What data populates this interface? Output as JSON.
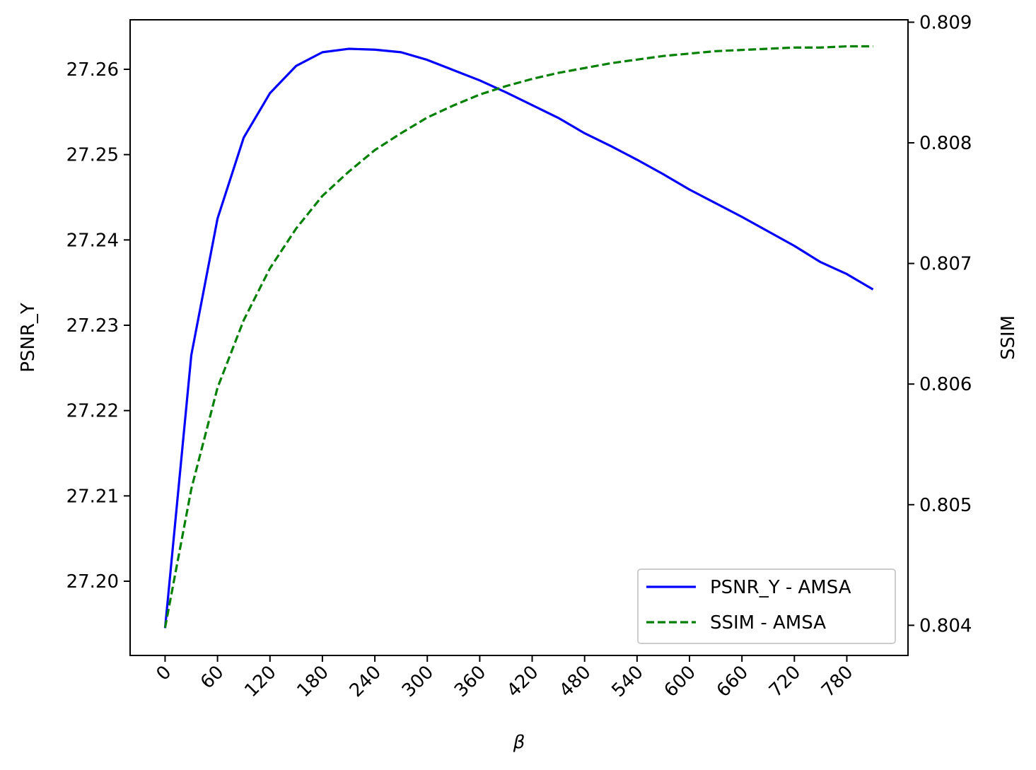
{
  "chart_data": {
    "type": "line",
    "xlabel": "β",
    "ylabel_left": "PSNR_Y",
    "ylabel_right": "SSIM",
    "x_ticks": [
      0,
      60,
      120,
      180,
      240,
      300,
      360,
      420,
      480,
      540,
      600,
      660,
      720,
      780
    ],
    "x_tick_labels": [
      "0",
      "60",
      "120",
      "180",
      "240",
      "300",
      "360",
      "420",
      "480",
      "540",
      "600",
      "660",
      "720",
      "780"
    ],
    "xlim": [
      -40,
      850
    ],
    "left_axis": {
      "ylim": [
        27.1913,
        27.2658
      ],
      "ticks": [
        27.2,
        27.21,
        27.22,
        27.23,
        27.24,
        27.25,
        27.26
      ],
      "tick_labels": [
        "27.20",
        "27.21",
        "27.22",
        "27.23",
        "27.24",
        "27.25",
        "27.26"
      ]
    },
    "right_axis": {
      "ylim": [
        0.80375,
        0.80902
      ],
      "ticks": [
        0.804,
        0.805,
        0.806,
        0.807,
        0.808,
        0.809
      ],
      "tick_labels": [
        "0.804",
        "0.805",
        "0.806",
        "0.807",
        "0.808",
        "0.809"
      ]
    },
    "legend_position": "lower-right",
    "grid": false,
    "series": [
      {
        "name": "PSNR_Y - AMSA",
        "axis": "left",
        "color": "#0000ff",
        "style": "solid",
        "x": [
          0,
          30,
          60,
          90,
          120,
          150,
          180,
          210,
          240,
          270,
          300,
          330,
          360,
          390,
          420,
          450,
          480,
          510,
          540,
          570,
          600,
          630,
          660,
          690,
          720,
          750,
          780,
          810
        ],
        "y": [
          27.1945,
          27.2265,
          27.2425,
          27.252,
          27.2572,
          27.2604,
          27.262,
          27.2624,
          27.2623,
          27.262,
          27.2611,
          27.2599,
          27.2587,
          27.2573,
          27.2558,
          27.2543,
          27.2525,
          27.251,
          27.2494,
          27.2477,
          27.2459,
          27.2443,
          27.2427,
          27.241,
          27.2393,
          27.2374,
          27.236,
          27.2342
        ]
      },
      {
        "name": "SSIM - AMSA",
        "axis": "right",
        "color": "#008000",
        "style": "dashed",
        "x": [
          0,
          30,
          60,
          90,
          120,
          150,
          180,
          210,
          240,
          270,
          300,
          330,
          360,
          390,
          420,
          450,
          480,
          510,
          540,
          570,
          600,
          630,
          660,
          690,
          720,
          750,
          780,
          810
        ],
        "y": [
          0.80398,
          0.80513,
          0.80597,
          0.80653,
          0.80696,
          0.80729,
          0.80756,
          0.80776,
          0.80794,
          0.80808,
          0.80821,
          0.80831,
          0.8084,
          0.80847,
          0.80853,
          0.80858,
          0.80862,
          0.80866,
          0.80869,
          0.80872,
          0.80874,
          0.80876,
          0.80877,
          0.80878,
          0.80879,
          0.80879,
          0.8088,
          0.8088
        ]
      }
    ]
  }
}
